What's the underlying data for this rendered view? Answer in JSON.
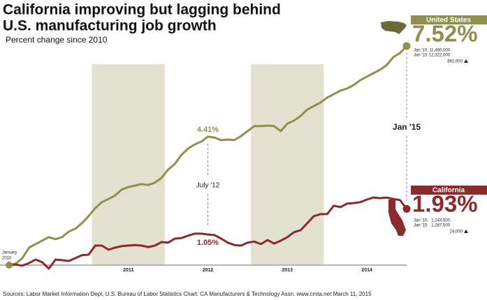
{
  "chart_data": {
    "type": "line",
    "title": [
      "California improving but lagging behind",
      "U.S. manufacturing job growth"
    ],
    "subtitle": "Percent change since 2010",
    "source": "Sources: Labor Market Information Dept, U.S. Bureau of Labor Statistics    Chart: CA Manufacturers & Technology Assn.  www.cmta.net    March 11, 2015",
    "categories": [
      null,
      null,
      null,
      null,
      null,
      null,
      null,
      null,
      null,
      null,
      null,
      null,
      null,
      null,
      null,
      null,
      null,
      null,
      "2011",
      null,
      null,
      null,
      null,
      null,
      null,
      null,
      null,
      null,
      null,
      null,
      "2012",
      null,
      null,
      null,
      null,
      null,
      null,
      null,
      null,
      null,
      null,
      null,
      "2013",
      null,
      null,
      null,
      null,
      null,
      null,
      null,
      null,
      null,
      null,
      null,
      "2014",
      null,
      null,
      null,
      null,
      null,
      null
    ],
    "start_label": [
      "January",
      "2010"
    ],
    "markers": [
      {
        "index": 30,
        "label": "July '12"
      },
      {
        "index": 60,
        "label": "Jan '15"
      }
    ],
    "series": [
      {
        "name": "United States",
        "color": "#8f8f4e",
        "values": [
          0,
          0.05,
          0.24,
          0.6,
          0.72,
          0.84,
          0.96,
          0.89,
          0.96,
          1.15,
          1.25,
          1.44,
          1.68,
          1.96,
          2.16,
          2.27,
          2.39,
          2.59,
          2.68,
          2.73,
          2.78,
          2.75,
          2.83,
          2.99,
          3.28,
          3.47,
          3.78,
          4.0,
          4.14,
          4.24,
          4.41,
          4.38,
          4.29,
          4.31,
          4.29,
          4.43,
          4.6,
          4.77,
          4.77,
          4.79,
          4.77,
          4.6,
          4.86,
          4.96,
          5.12,
          5.34,
          5.46,
          5.58,
          5.75,
          5.87,
          5.99,
          6.06,
          6.18,
          6.35,
          6.47,
          6.59,
          6.71,
          6.87,
          7.14,
          7.28,
          7.52
        ],
        "value_labels": [
          null,
          null,
          null,
          null,
          null,
          null,
          null,
          null,
          null,
          null,
          null,
          null,
          null,
          null,
          null,
          null,
          null,
          null,
          null,
          null,
          null,
          null,
          null,
          null,
          null,
          null,
          null,
          null,
          null,
          null,
          "4.41%",
          null,
          null,
          null,
          null,
          null,
          null,
          null,
          null,
          null,
          null,
          null,
          null,
          null,
          null,
          null,
          null,
          null,
          null,
          null,
          null,
          null,
          null,
          null,
          null,
          null,
          null,
          null,
          null,
          null,
          "7.52%"
        ],
        "stats": [
          [
            "Jan '10:",
            "11,460,000"
          ],
          [
            "Jan '15:",
            "12,322,000"
          ]
        ],
        "change": "862,000"
      },
      {
        "name": "California",
        "color": "#8b2a2a",
        "values": [
          0,
          0.02,
          -0.02,
          0.07,
          0.19,
          0.1,
          -0.12,
          0.19,
          0.17,
          0.14,
          0.24,
          0.34,
          0.36,
          0.67,
          0.67,
          0.53,
          0.6,
          0.65,
          0.67,
          0.69,
          0.67,
          0.62,
          0.67,
          0.79,
          0.77,
          0.91,
          0.93,
          1.01,
          1.08,
          1.08,
          1.05,
          1.03,
          0.91,
          0.77,
          0.69,
          0.67,
          0.77,
          0.81,
          0.72,
          0.86,
          0.74,
          0.84,
          0.96,
          1.13,
          1.2,
          1.44,
          1.68,
          1.75,
          1.75,
          2.04,
          1.99,
          2.11,
          2.13,
          2.16,
          2.25,
          2.32,
          2.3,
          2.32,
          2.27,
          2.23,
          1.93
        ],
        "value_labels": [
          null,
          null,
          null,
          null,
          null,
          null,
          null,
          null,
          null,
          null,
          null,
          null,
          null,
          null,
          null,
          null,
          null,
          null,
          null,
          null,
          null,
          null,
          null,
          null,
          null,
          null,
          null,
          null,
          null,
          null,
          "1.05%",
          null,
          null,
          null,
          null,
          null,
          null,
          null,
          null,
          null,
          null,
          null,
          null,
          null,
          null,
          null,
          null,
          null,
          null,
          null,
          null,
          null,
          null,
          null,
          null,
          null,
          null,
          null,
          null,
          null,
          "1.93%"
        ],
        "stats": [
          [
            "Jan '10:",
            "1,243,500"
          ],
          [
            "Jan '15:",
            "1,267,500"
          ]
        ],
        "change": "24,000"
      }
    ]
  }
}
